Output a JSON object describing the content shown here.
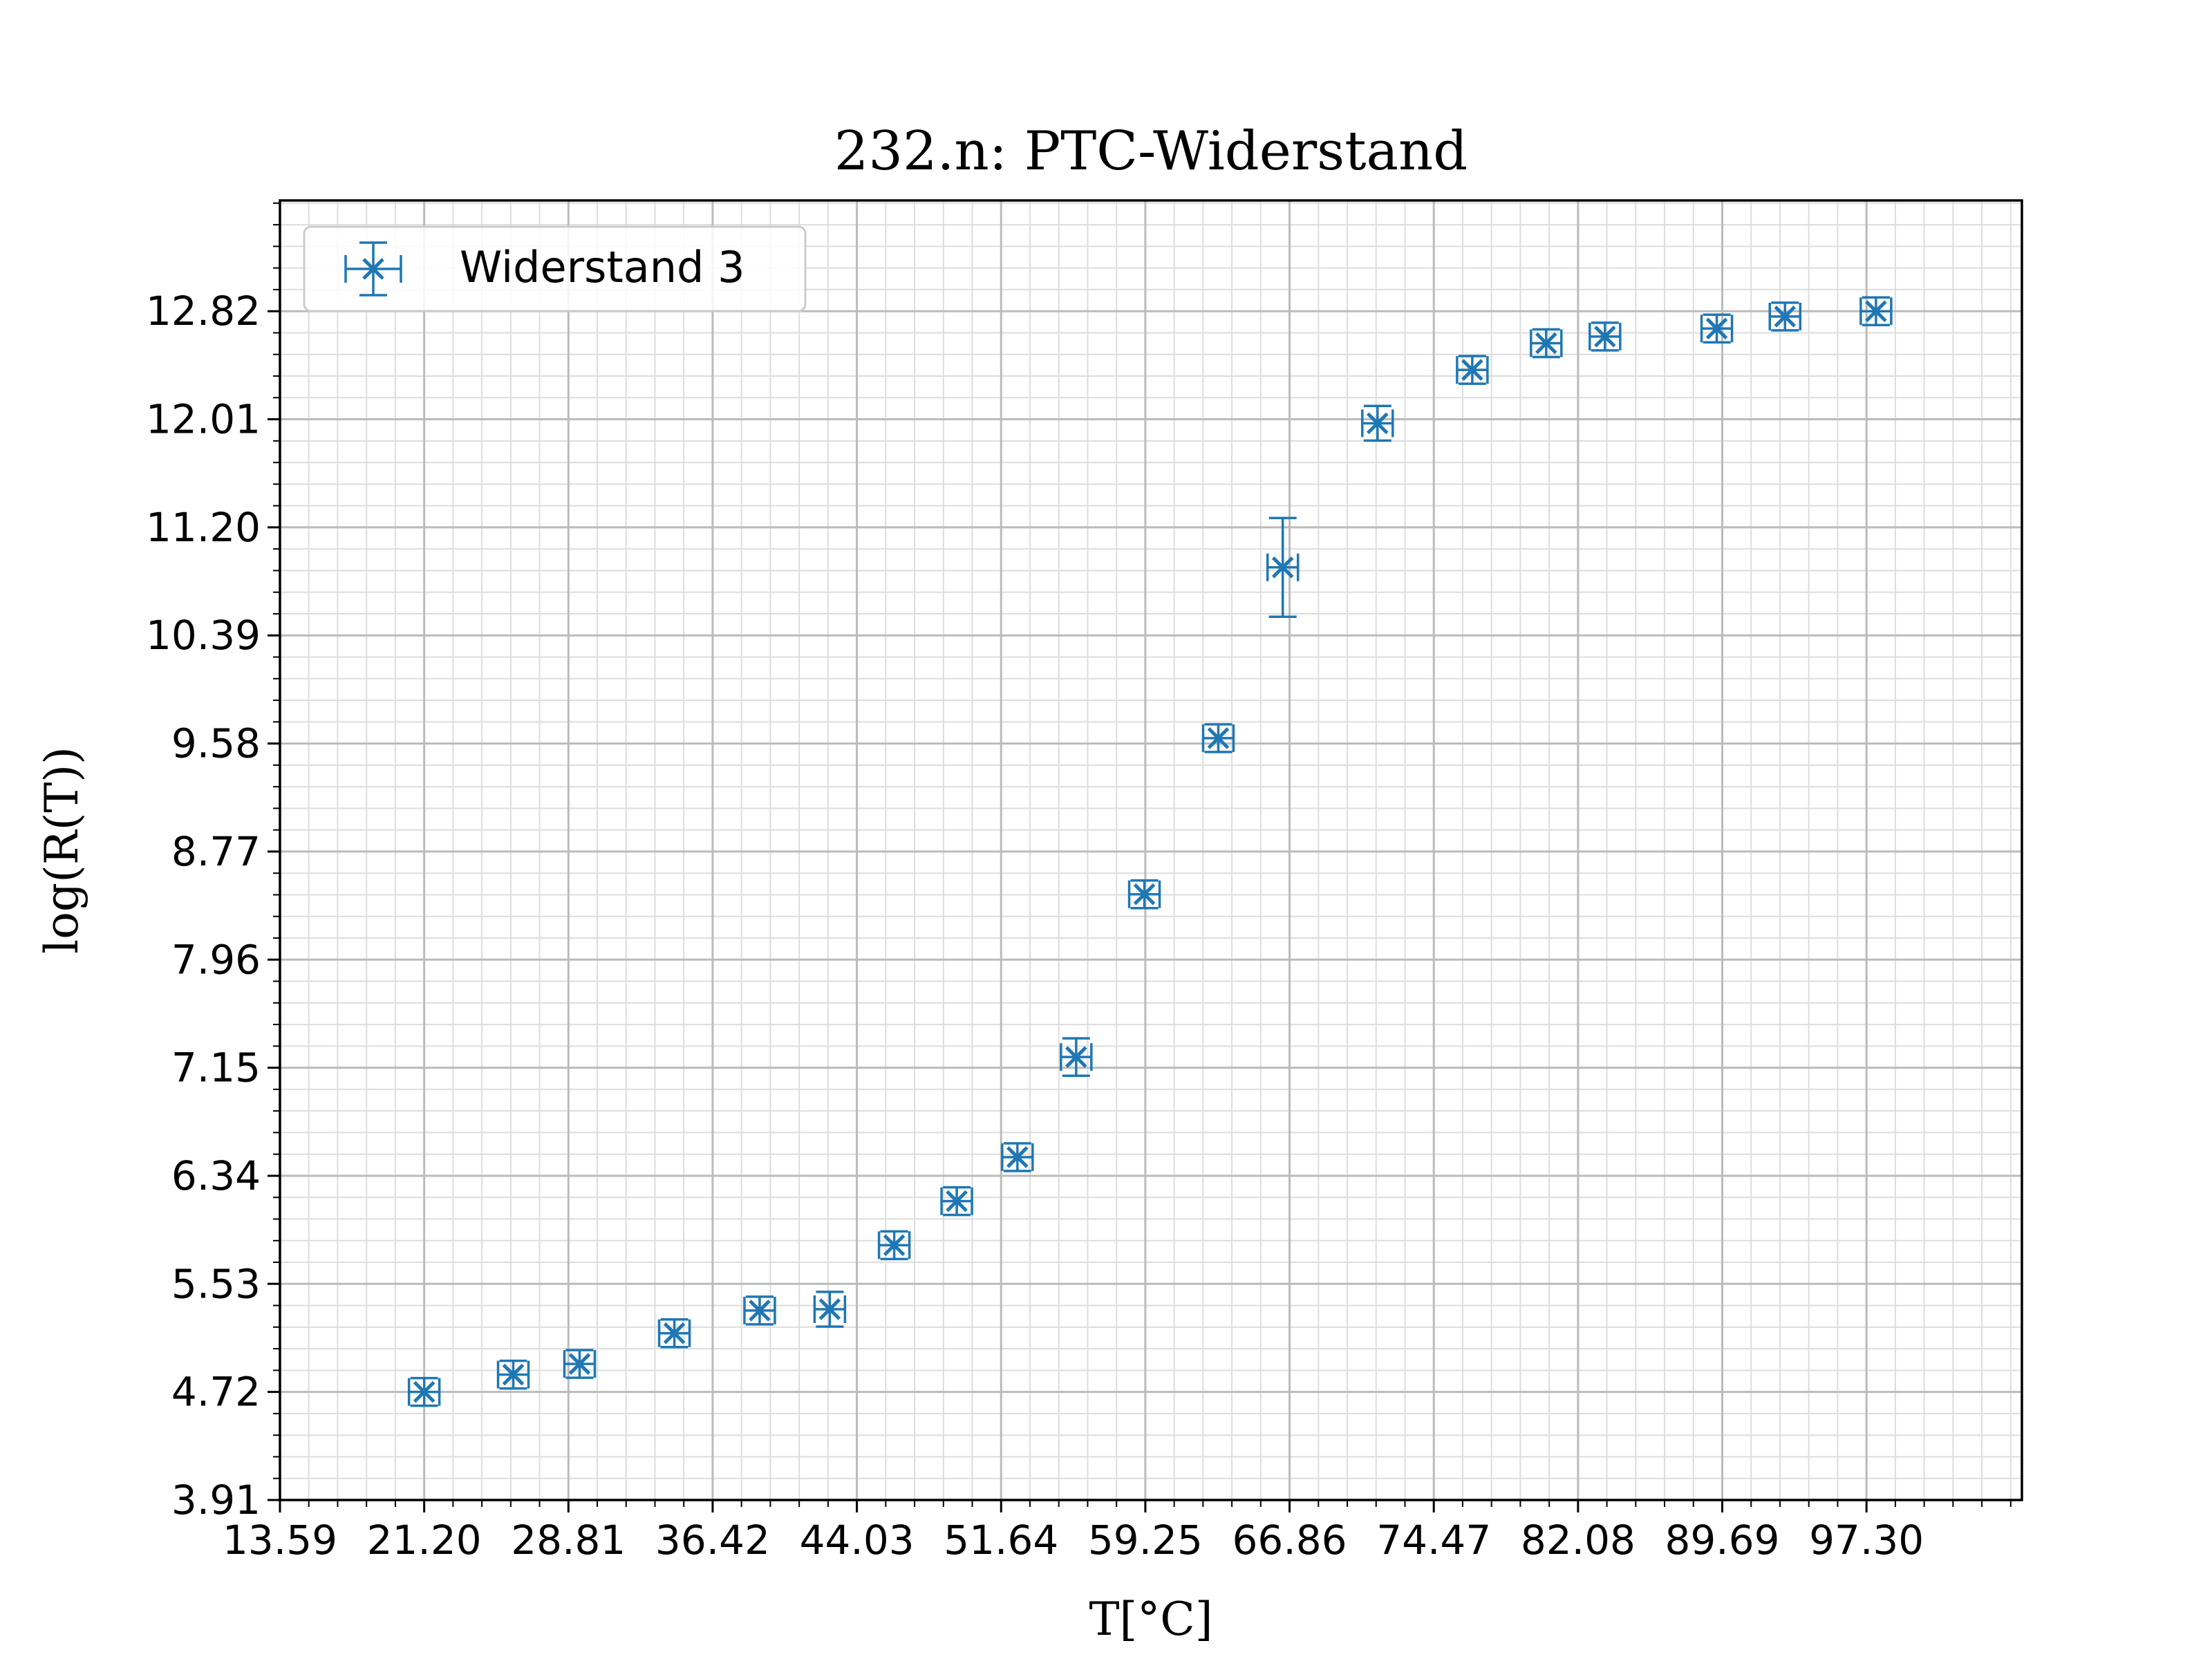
{
  "chart_data": {
    "type": "scatter",
    "title": "232.n: PTC-Widerstand",
    "xlabel": "T[°C]",
    "ylabel": "log(R(T))",
    "xlim": [
      13.59,
      105.5
    ],
    "ylim": [
      3.91,
      13.65
    ],
    "x_ticks": [
      "13.59",
      "21.20",
      "28.81",
      "36.42",
      "44.03",
      "51.64",
      "59.25",
      "66.86",
      "74.47",
      "82.08",
      "89.69",
      "97.30"
    ],
    "y_ticks": [
      "3.91",
      "4.72",
      "5.53",
      "6.34",
      "7.15",
      "7.96",
      "8.77",
      "9.58",
      "10.39",
      "11.20",
      "12.01",
      "12.82"
    ],
    "grid": true,
    "minor_grid": true,
    "legend": {
      "position": "top-left",
      "entries": [
        "Widerstand 3"
      ]
    },
    "color": "#1f77b4",
    "series": [
      {
        "name": "Widerstand 3",
        "points": [
          {
            "x": 21.2,
            "y": 4.72,
            "xerr": 0.7,
            "yerr": 0.08
          },
          {
            "x": 25.9,
            "y": 4.85,
            "xerr": 0.7,
            "yerr": 0.08
          },
          {
            "x": 29.4,
            "y": 4.93,
            "xerr": 0.7,
            "yerr": 0.08
          },
          {
            "x": 34.4,
            "y": 5.16,
            "xerr": 0.7,
            "yerr": 0.08
          },
          {
            "x": 38.9,
            "y": 5.33,
            "xerr": 0.7,
            "yerr": 0.08
          },
          {
            "x": 42.6,
            "y": 5.34,
            "xerr": 0.7,
            "yerr": 0.13
          },
          {
            "x": 46.0,
            "y": 5.82,
            "xerr": 0.7,
            "yerr": 0.08
          },
          {
            "x": 49.3,
            "y": 6.15,
            "xerr": 0.7,
            "yerr": 0.08
          },
          {
            "x": 52.5,
            "y": 6.48,
            "xerr": 0.7,
            "yerr": 0.08
          },
          {
            "x": 55.6,
            "y": 7.23,
            "xerr": 0.7,
            "yerr": 0.14
          },
          {
            "x": 59.2,
            "y": 8.45,
            "xerr": 0.7,
            "yerr": 0.07
          },
          {
            "x": 63.1,
            "y": 9.62,
            "xerr": 0.7,
            "yerr": 0.07
          },
          {
            "x": 66.5,
            "y": 10.9,
            "xerr": 0.7,
            "yerr": 0.37
          },
          {
            "x": 71.5,
            "y": 11.98,
            "xerr": 0.7,
            "yerr": 0.13
          },
          {
            "x": 76.5,
            "y": 12.38,
            "xerr": 0.7,
            "yerr": 0.08
          },
          {
            "x": 80.4,
            "y": 12.58,
            "xerr": 0.7,
            "yerr": 0.08
          },
          {
            "x": 83.5,
            "y": 12.63,
            "xerr": 0.7,
            "yerr": 0.08
          },
          {
            "x": 89.4,
            "y": 12.69,
            "xerr": 0.7,
            "yerr": 0.08
          },
          {
            "x": 93.0,
            "y": 12.78,
            "xerr": 0.7,
            "yerr": 0.08
          },
          {
            "x": 97.8,
            "y": 12.82,
            "xerr": 0.7,
            "yerr": 0.07
          }
        ]
      }
    ]
  }
}
